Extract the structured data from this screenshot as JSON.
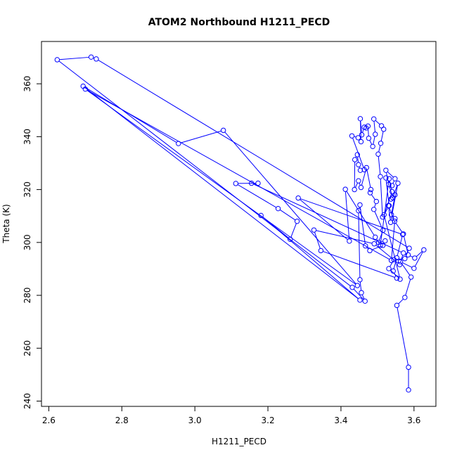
{
  "chart_data": {
    "type": "line",
    "title": "ATOM2 Northbound H1211_PECD",
    "xlabel": "H1211_PECD",
    "ylabel": "Theta (K)",
    "xlim": [
      2.58,
      3.66
    ],
    "ylim": [
      238,
      376
    ],
    "x_ticks": [
      "2.6",
      "2.8",
      "3.0",
      "3.2",
      "3.4",
      "3.6"
    ],
    "y_ticks": [
      "240",
      "260",
      "280",
      "300",
      "320",
      "340",
      "360"
    ],
    "series": [
      {
        "color": "#0000ff",
        "marker": "open-circle",
        "points": [
          [
            3.585,
            244.2
          ],
          [
            3.585,
            252.8
          ],
          [
            3.553,
            276.2
          ],
          [
            3.575,
            279.2
          ],
          [
            3.592,
            286.9
          ],
          [
            3.563,
            292.7
          ],
          [
            3.6,
            290.2
          ],
          [
            3.627,
            297.2
          ],
          [
            3.602,
            294.1
          ],
          [
            3.584,
            295.3
          ],
          [
            3.571,
            303.2
          ],
          [
            3.547,
            308.0
          ],
          [
            3.53,
            313.9
          ],
          [
            3.536,
            307.6
          ],
          [
            3.556,
            322.4
          ],
          [
            3.542,
            316.9
          ],
          [
            3.531,
            321.9
          ],
          [
            3.523,
            327.3
          ],
          [
            3.548,
            324.1
          ],
          [
            3.54,
            321.5
          ],
          [
            3.523,
            324.4
          ],
          [
            3.532,
            313.9
          ],
          [
            3.514,
            309.6
          ],
          [
            3.508,
            324.9
          ],
          [
            3.502,
            333.4
          ],
          [
            3.509,
            337.5
          ],
          [
            3.517,
            342.8
          ],
          [
            3.511,
            344.1
          ],
          [
            3.49,
            346.7
          ],
          [
            3.494,
            340.9
          ],
          [
            3.487,
            336.3
          ],
          [
            3.476,
            339.4
          ],
          [
            3.474,
            344.0
          ],
          [
            3.469,
            343.3
          ],
          [
            3.464,
            343.6
          ],
          [
            3.457,
            340.7
          ],
          [
            3.453,
            346.8
          ],
          [
            3.455,
            338.1
          ],
          [
            3.447,
            339.6
          ],
          [
            3.43,
            340.3
          ],
          [
            3.464,
            327.5
          ],
          [
            3.453,
            327.3
          ],
          [
            3.448,
            329.4
          ],
          [
            3.445,
            333.2
          ],
          [
            3.438,
            331.3
          ],
          [
            3.437,
            320.0
          ],
          [
            3.448,
            323.3
          ],
          [
            3.455,
            320.8
          ],
          [
            3.47,
            328.3
          ],
          [
            3.482,
            320.0
          ],
          [
            3.48,
            318.8
          ],
          [
            3.497,
            315.5
          ],
          [
            3.49,
            312.5
          ],
          [
            3.515,
            304.6
          ],
          [
            3.503,
            300.0
          ],
          [
            3.521,
            300.6
          ],
          [
            3.515,
            298.9
          ],
          [
            3.479,
            296.9
          ],
          [
            3.467,
            298.7
          ],
          [
            3.452,
            314.2
          ],
          [
            3.448,
            312.0
          ],
          [
            3.452,
            285.9
          ],
          [
            3.456,
            281.0
          ],
          [
            3.466,
            277.8
          ],
          [
            3.431,
            283.0
          ],
          [
            2.623,
            369.1
          ],
          [
            2.716,
            370.1
          ],
          [
            2.73,
            369.4
          ],
          [
            3.587,
            297.8
          ],
          [
            3.575,
            293.9
          ],
          [
            3.545,
            293.5
          ],
          [
            3.531,
            290.1
          ],
          [
            3.562,
            286.1
          ],
          [
            3.518,
            310.5
          ],
          [
            3.54,
            319.2
          ],
          [
            3.532,
            324.1
          ],
          [
            3.508,
            298.9
          ],
          [
            3.494,
            302.0
          ],
          [
            3.412,
            320.1
          ],
          [
            3.423,
            300.5
          ],
          [
            3.283,
            316.8
          ],
          [
            3.569,
            303.0
          ],
          [
            3.553,
            294.2
          ],
          [
            3.543,
            289.2
          ],
          [
            3.553,
            286.5
          ],
          [
            3.345,
            296.9
          ],
          [
            3.326,
            304.7
          ],
          [
            3.491,
            299.5
          ],
          [
            3.561,
            291.6
          ],
          [
            3.571,
            296.0
          ],
          [
            3.155,
            322.4
          ],
          [
            3.173,
            322.4
          ],
          [
            3.112,
            322.3
          ],
          [
            3.228,
            312.8
          ],
          [
            3.28,
            308.0
          ],
          [
            3.261,
            301.2
          ],
          [
            3.181,
            310.2
          ],
          [
            3.452,
            278.2
          ],
          [
            2.694,
            359.1
          ],
          [
            2.955,
            337.4
          ],
          [
            3.078,
            342.4
          ],
          [
            3.445,
            283.7
          ],
          [
            2.7,
            358.0
          ],
          [
            3.538,
            293.2
          ],
          [
            3.548,
            309.0
          ],
          [
            3.538,
            310.5
          ],
          [
            3.548,
            318.0
          ],
          [
            3.537,
            316.4
          ]
        ]
      }
    ]
  }
}
